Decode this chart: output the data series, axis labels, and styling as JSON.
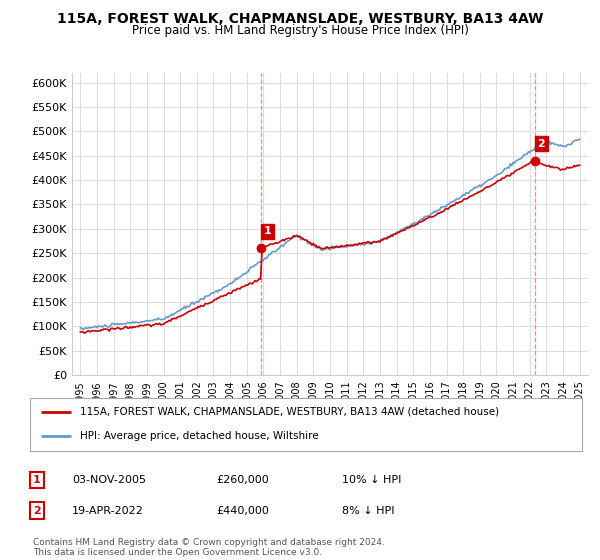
{
  "title": "115A, FOREST WALK, CHAPMANSLADE, WESTBURY, BA13 4AW",
  "subtitle": "Price paid vs. HM Land Registry's House Price Index (HPI)",
  "legend_label_red": "115A, FOREST WALK, CHAPMANSLADE, WESTBURY, BA13 4AW (detached house)",
  "legend_label_blue": "HPI: Average price, detached house, Wiltshire",
  "footnote": "Contains HM Land Registry data © Crown copyright and database right 2024.\nThis data is licensed under the Open Government Licence v3.0.",
  "annotation1_label": "1",
  "annotation1_date": "03-NOV-2005",
  "annotation1_price": "£260,000",
  "annotation1_hpi": "10% ↓ HPI",
  "annotation2_label": "2",
  "annotation2_date": "19-APR-2022",
  "annotation2_price": "£440,000",
  "annotation2_hpi": "8% ↓ HPI",
  "sale1_x": 2005.84,
  "sale1_y": 260000,
  "sale2_x": 2022.3,
  "sale2_y": 440000,
  "ylim": [
    0,
    620000
  ],
  "xlim": [
    1994.5,
    2025.5
  ],
  "yticks": [
    0,
    50000,
    100000,
    150000,
    200000,
    250000,
    300000,
    350000,
    400000,
    450000,
    500000,
    550000,
    600000
  ],
  "xticks": [
    1995,
    1996,
    1997,
    1998,
    1999,
    2000,
    2001,
    2002,
    2003,
    2004,
    2005,
    2006,
    2007,
    2008,
    2009,
    2010,
    2011,
    2012,
    2013,
    2014,
    2015,
    2016,
    2017,
    2018,
    2019,
    2020,
    2021,
    2022,
    2023,
    2024,
    2025
  ],
  "background_color": "#ffffff",
  "grid_color": "#dddddd",
  "line_color_red": "#cc0000",
  "line_color_blue": "#6699cc",
  "vline_color": "#ff8888"
}
